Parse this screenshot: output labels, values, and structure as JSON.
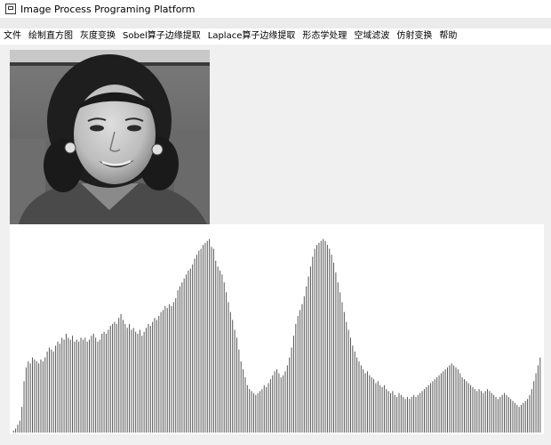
{
  "window": {
    "title": "Image Process Programing Platform"
  },
  "menu": [
    "文件",
    "绘制直方图",
    "灰度变换",
    "Sobel算子边缘提取",
    "Laplace算子边缘提取",
    "形态学处理",
    "空域滤波",
    "仿射变换",
    "帮助"
  ],
  "image_panel": {
    "content": "grayscale portrait photo",
    "icon": "photo"
  },
  "chart_data": {
    "type": "bar",
    "title": "",
    "xlabel": "",
    "ylabel": "",
    "xlim": [
      0,
      255
    ],
    "ylim": [
      0,
      1
    ],
    "grid": false,
    "bar_color": "#555555",
    "values": [
      0.01,
      0.02,
      0.04,
      0.06,
      0.13,
      0.26,
      0.33,
      0.36,
      0.35,
      0.38,
      0.37,
      0.36,
      0.35,
      0.37,
      0.36,
      0.38,
      0.41,
      0.43,
      0.42,
      0.41,
      0.44,
      0.46,
      0.45,
      0.48,
      0.47,
      0.5,
      0.48,
      0.47,
      0.49,
      0.46,
      0.47,
      0.46,
      0.48,
      0.47,
      0.48,
      0.46,
      0.47,
      0.49,
      0.5,
      0.48,
      0.46,
      0.47,
      0.5,
      0.51,
      0.5,
      0.52,
      0.54,
      0.55,
      0.56,
      0.55,
      0.58,
      0.6,
      0.57,
      0.55,
      0.53,
      0.55,
      0.52,
      0.53,
      0.51,
      0.5,
      0.52,
      0.49,
      0.51,
      0.53,
      0.55,
      0.54,
      0.56,
      0.58,
      0.57,
      0.59,
      0.61,
      0.62,
      0.64,
      0.63,
      0.65,
      0.64,
      0.66,
      0.68,
      0.72,
      0.74,
      0.76,
      0.78,
      0.8,
      0.82,
      0.83,
      0.85,
      0.88,
      0.9,
      0.92,
      0.93,
      0.95,
      0.96,
      0.97,
      0.98,
      0.94,
      0.93,
      0.87,
      0.84,
      0.82,
      0.8,
      0.76,
      0.71,
      0.66,
      0.61,
      0.57,
      0.52,
      0.48,
      0.42,
      0.36,
      0.32,
      0.28,
      0.24,
      0.22,
      0.21,
      0.2,
      0.19,
      0.2,
      0.21,
      0.22,
      0.24,
      0.23,
      0.25,
      0.27,
      0.29,
      0.31,
      0.32,
      0.3,
      0.28,
      0.29,
      0.31,
      0.34,
      0.38,
      0.43,
      0.49,
      0.55,
      0.59,
      0.62,
      0.65,
      0.69,
      0.74,
      0.79,
      0.84,
      0.89,
      0.93,
      0.95,
      0.96,
      0.97,
      0.98,
      0.97,
      0.95,
      0.93,
      0.9,
      0.86,
      0.81,
      0.76,
      0.71,
      0.66,
      0.61,
      0.56,
      0.52,
      0.48,
      0.44,
      0.41,
      0.38,
      0.36,
      0.34,
      0.32,
      0.3,
      0.31,
      0.29,
      0.28,
      0.27,
      0.25,
      0.26,
      0.24,
      0.23,
      0.24,
      0.22,
      0.21,
      0.2,
      0.21,
      0.19,
      0.18,
      0.2,
      0.19,
      0.18,
      0.17,
      0.18,
      0.17,
      0.18,
      0.19,
      0.18,
      0.19,
      0.2,
      0.21,
      0.22,
      0.23,
      0.24,
      0.25,
      0.26,
      0.27,
      0.28,
      0.29,
      0.3,
      0.31,
      0.32,
      0.33,
      0.34,
      0.35,
      0.34,
      0.33,
      0.32,
      0.3,
      0.28,
      0.27,
      0.26,
      0.25,
      0.24,
      0.23,
      0.22,
      0.21,
      0.22,
      0.21,
      0.2,
      0.21,
      0.22,
      0.21,
      0.2,
      0.19,
      0.18,
      0.17,
      0.18,
      0.19,
      0.2,
      0.19,
      0.18,
      0.17,
      0.16,
      0.15,
      0.14,
      0.13,
      0.14,
      0.15,
      0.16,
      0.17,
      0.19,
      0.22,
      0.26,
      0.3,
      0.34,
      0.38
    ]
  }
}
